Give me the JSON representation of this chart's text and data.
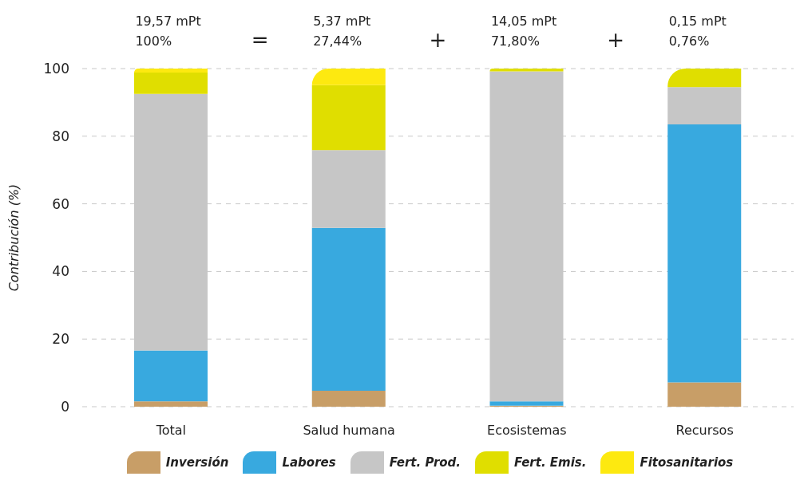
{
  "chart_data": {
    "type": "bar",
    "stacked": true,
    "ylabel": "Contribución (%)",
    "categories": [
      "Total",
      "Salud humana",
      "Ecosistemas",
      "Recursos"
    ],
    "series": [
      {
        "name": "Inversión",
        "color": "#c89e67",
        "values": [
          1.6,
          4.7,
          0.3,
          7.2
        ]
      },
      {
        "name": "Labores",
        "color": "#38a9df",
        "values": [
          15.0,
          48.2,
          1.3,
          76.3
        ]
      },
      {
        "name": "Fert. Prod.",
        "color": "#c6c6c6",
        "values": [
          75.9,
          23.0,
          97.6,
          11.0
        ]
      },
      {
        "name": "Fert. Emis.",
        "color": "#e0de00",
        "values": [
          6.3,
          19.2,
          0.8,
          5.5
        ]
      },
      {
        "name": "Fitosanitarios",
        "color": "#fde910",
        "values": [
          1.2,
          4.9,
          0,
          0
        ]
      }
    ],
    "ylim": [
      0,
      100
    ],
    "yticks": [
      0,
      20,
      40,
      60,
      80,
      100
    ],
    "grid": "y",
    "legend": "bottom",
    "annotations": [
      "19,57 mPt\n100%",
      "=",
      "5,37 mPt\n27,44%",
      "+",
      "14,05 mPt\n71,80%",
      "+",
      "0,15 mPt\n0,76%"
    ]
  }
}
